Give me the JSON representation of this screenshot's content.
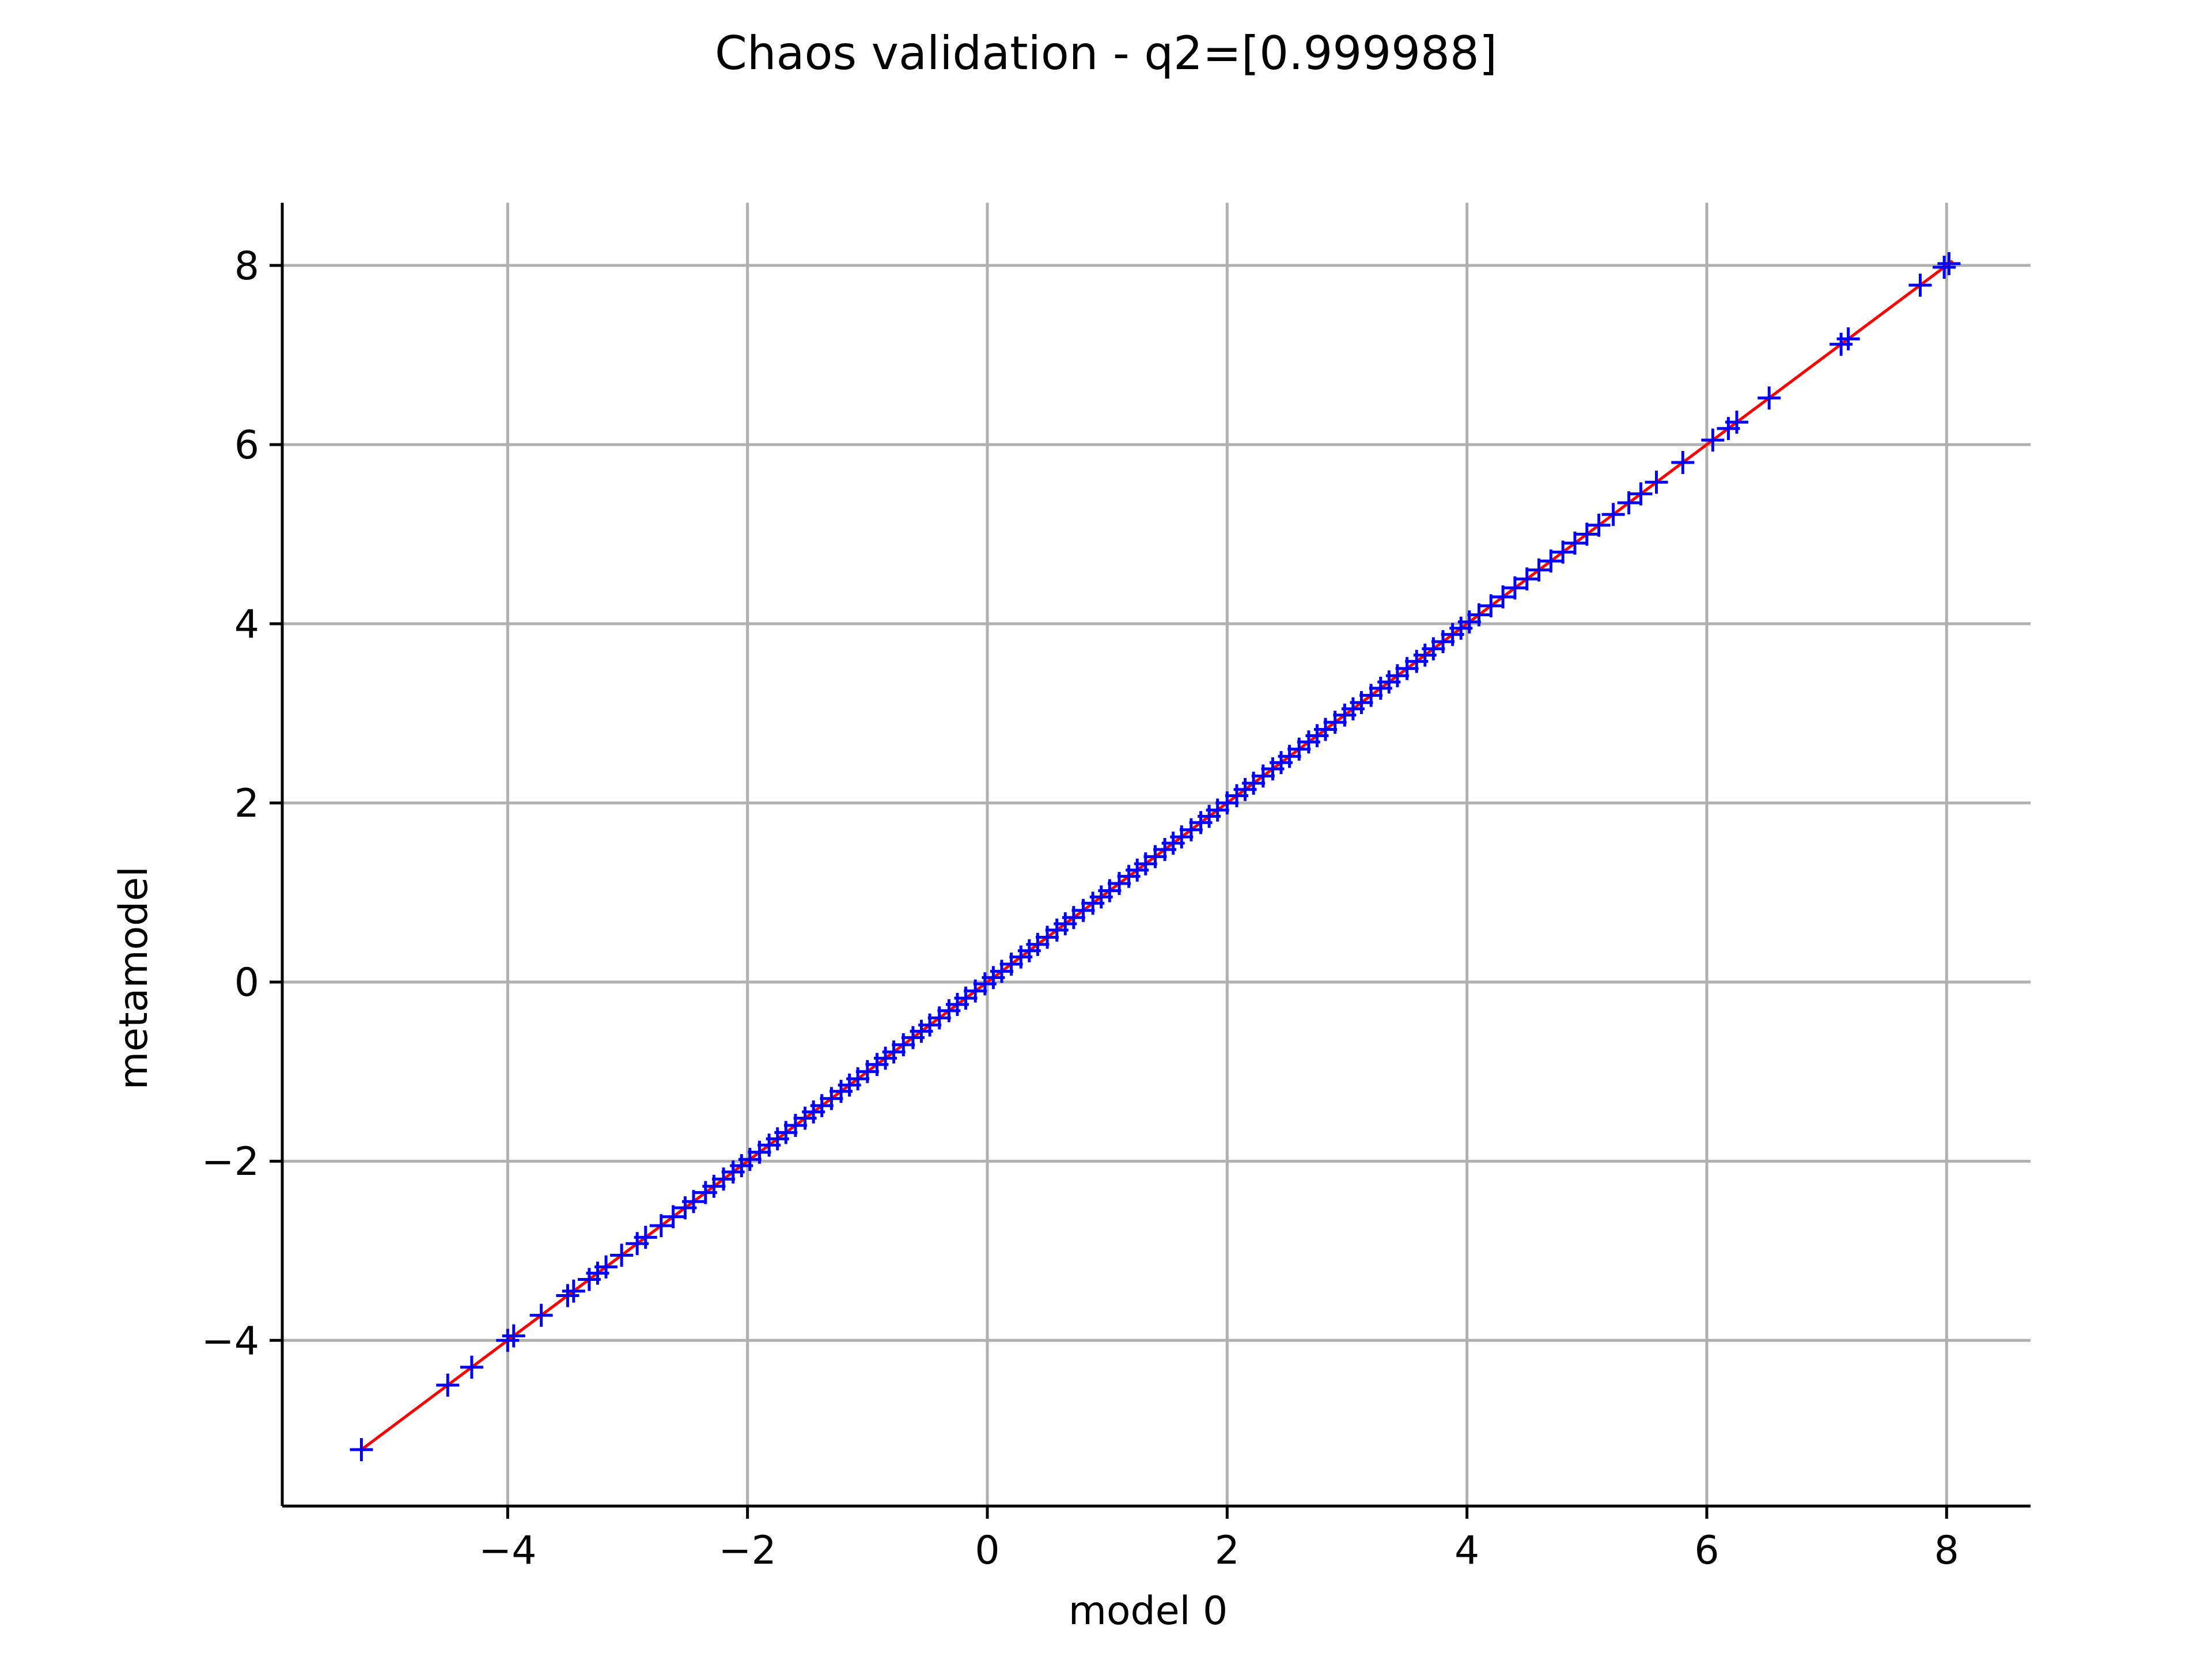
{
  "chart_data": {
    "type": "scatter",
    "title": "Chaos validation - q2=[0.999988]",
    "xlabel": "model 0",
    "ylabel": "metamodel",
    "xlim": [
      -5.88,
      8.7
    ],
    "ylim": [
      -5.85,
      8.7
    ],
    "xticks": [
      -4,
      -2,
      0,
      2,
      4,
      6,
      8
    ],
    "yticks": [
      -4,
      -2,
      0,
      2,
      4,
      6,
      8
    ],
    "xtick_labels": [
      "−4",
      "−2",
      "0",
      "2",
      "4",
      "6",
      "8"
    ],
    "ytick_labels": [
      "−4",
      "−2",
      "0",
      "2",
      "4",
      "6",
      "8"
    ],
    "grid": true,
    "reference_line": {
      "x": [
        -5.22,
        8.05
      ],
      "y": [
        -5.22,
        8.05
      ],
      "color": "#ff0000"
    },
    "series": [
      {
        "marker": "+",
        "color": "#0000ff",
        "x": [
          -5.22,
          -4.5,
          -4.3,
          -4.0,
          -3.95,
          -3.72,
          -3.5,
          -3.45,
          -3.32,
          -3.25,
          -3.18,
          -3.05,
          -2.92,
          -2.85,
          -2.72,
          -2.62,
          -2.52,
          -2.45,
          -2.35,
          -2.28,
          -2.2,
          -2.12,
          -2.05,
          -1.98,
          -1.9,
          -1.82,
          -1.75,
          -1.68,
          -1.6,
          -1.52,
          -1.45,
          -1.38,
          -1.3,
          -1.22,
          -1.15,
          -1.08,
          -1.0,
          -0.92,
          -0.85,
          -0.78,
          -0.7,
          -0.62,
          -0.55,
          -0.48,
          -0.4,
          -0.32,
          -0.25,
          -0.18,
          -0.1,
          -0.02,
          0.05,
          0.12,
          0.2,
          0.28,
          0.35,
          0.42,
          0.5,
          0.58,
          0.65,
          0.72,
          0.8,
          0.88,
          0.95,
          1.02,
          1.1,
          1.18,
          1.25,
          1.32,
          1.4,
          1.48,
          1.55,
          1.62,
          1.7,
          1.78,
          1.85,
          1.92,
          2.0,
          2.08,
          2.15,
          2.22,
          2.3,
          2.38,
          2.45,
          2.52,
          2.6,
          2.68,
          2.75,
          2.82,
          2.9,
          2.98,
          3.05,
          3.12,
          3.2,
          3.28,
          3.35,
          3.42,
          3.5,
          3.58,
          3.65,
          3.72,
          3.8,
          3.88,
          3.95,
          4.02,
          4.1,
          4.2,
          4.3,
          4.4,
          4.5,
          4.6,
          4.7,
          4.8,
          4.9,
          5.0,
          5.1,
          5.22,
          5.35,
          5.45,
          5.58,
          5.8,
          6.05,
          6.18,
          6.25,
          6.52,
          7.12,
          7.18,
          7.78,
          7.98,
          8.02
        ],
        "y": [
          -5.22,
          -4.5,
          -4.3,
          -4.0,
          -3.95,
          -3.72,
          -3.5,
          -3.45,
          -3.32,
          -3.25,
          -3.18,
          -3.05,
          -2.92,
          -2.85,
          -2.72,
          -2.62,
          -2.52,
          -2.45,
          -2.35,
          -2.28,
          -2.2,
          -2.12,
          -2.05,
          -1.98,
          -1.9,
          -1.82,
          -1.75,
          -1.68,
          -1.6,
          -1.52,
          -1.45,
          -1.38,
          -1.3,
          -1.22,
          -1.15,
          -1.08,
          -1.0,
          -0.92,
          -0.85,
          -0.78,
          -0.7,
          -0.62,
          -0.55,
          -0.48,
          -0.4,
          -0.32,
          -0.25,
          -0.18,
          -0.1,
          -0.02,
          0.05,
          0.12,
          0.2,
          0.28,
          0.35,
          0.42,
          0.5,
          0.58,
          0.65,
          0.72,
          0.8,
          0.88,
          0.95,
          1.02,
          1.1,
          1.18,
          1.25,
          1.32,
          1.4,
          1.48,
          1.55,
          1.62,
          1.7,
          1.78,
          1.85,
          1.92,
          2.0,
          2.08,
          2.15,
          2.22,
          2.3,
          2.38,
          2.45,
          2.52,
          2.6,
          2.68,
          2.75,
          2.82,
          2.9,
          2.98,
          3.05,
          3.12,
          3.2,
          3.28,
          3.35,
          3.42,
          3.5,
          3.58,
          3.65,
          3.72,
          3.8,
          3.88,
          3.95,
          4.02,
          4.1,
          4.2,
          4.3,
          4.4,
          4.5,
          4.6,
          4.7,
          4.8,
          4.9,
          5.0,
          5.1,
          5.22,
          5.35,
          5.45,
          5.58,
          5.8,
          6.05,
          6.18,
          6.25,
          6.52,
          7.12,
          7.18,
          7.78,
          7.98,
          8.02
        ]
      }
    ]
  }
}
